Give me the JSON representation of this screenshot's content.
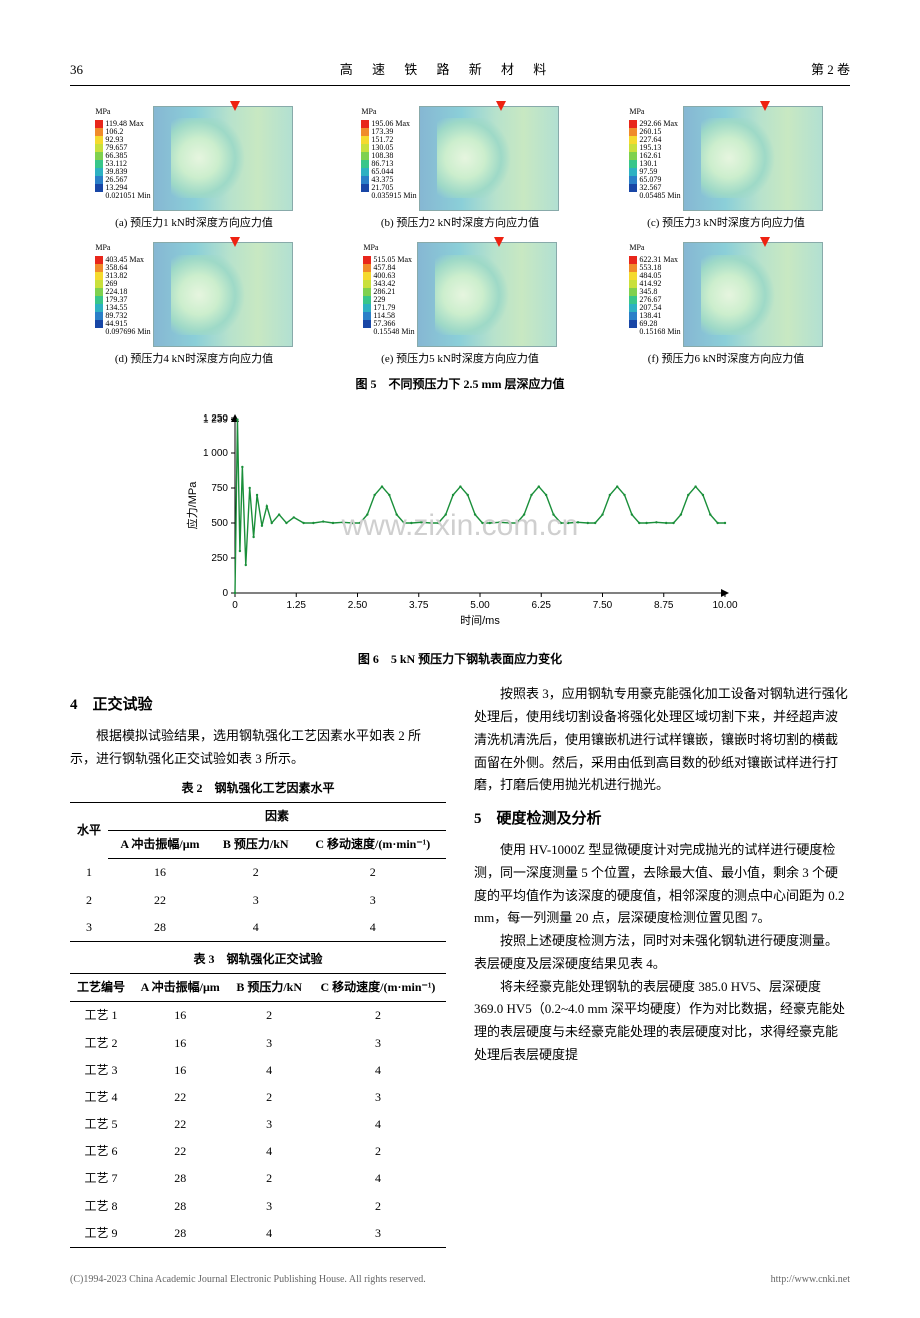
{
  "header": {
    "page_num": "36",
    "journal_title": "高 速 铁 路 新 材 料",
    "volume": "第 2 卷"
  },
  "fig5": {
    "title": "图 5　不同预压力下 2.5 mm 层深应力值",
    "legend_unit": "MPa",
    "legend_colors": [
      "#e8261b",
      "#f08b2a",
      "#f5da2e",
      "#c9e03c",
      "#7fd14e",
      "#38c68a",
      "#2db1c2",
      "#2a7fc8",
      "#1846a6"
    ],
    "panels": [
      {
        "caption": "(a) 预压力1 kN时深度方向应力值",
        "values": [
          "119.48 Max",
          "106.2",
          "92.93",
          "79.657",
          "66.385",
          "53.112",
          "39.839",
          "26.567",
          "13.294",
          "0.021051 Min"
        ]
      },
      {
        "caption": "(b) 预压力2 kN时深度方向应力值",
        "values": [
          "195.06 Max",
          "173.39",
          "151.72",
          "130.05",
          "108.38",
          "86.713",
          "65.044",
          "43.375",
          "21.705",
          "0.035915 Min"
        ]
      },
      {
        "caption": "(c) 预压力3 kN时深度方向应力值",
        "values": [
          "292.66 Max",
          "260.15",
          "227.64",
          "195.13",
          "162.61",
          "130.1",
          "97.59",
          "65.079",
          "32.567",
          "0.05485 Min"
        ]
      },
      {
        "caption": "(d) 预压力4 kN时深度方向应力值",
        "values": [
          "403.45 Max",
          "358.64",
          "313.82",
          "269",
          "224.18",
          "179.37",
          "134.55",
          "89.732",
          "44.915",
          "0.097696 Min"
        ]
      },
      {
        "caption": "(e) 预压力5 kN时深度方向应力值",
        "values": [
          "515.05 Max",
          "457.84",
          "400.63",
          "343.42",
          "286.21",
          "229",
          "171.79",
          "114.58",
          "57.366",
          "0.15548 Min"
        ]
      },
      {
        "caption": "(f) 预压力6 kN时深度方向应力值",
        "values": [
          "622.31 Max",
          "553.18",
          "484.05",
          "414.92",
          "345.8",
          "276.67",
          "207.54",
          "138.41",
          "69.28",
          "0.15168 Min"
        ]
      }
    ]
  },
  "fig6": {
    "title": "图 6　5 kN 预压力下钢轨表面应力变化",
    "x_label": "时间/ms",
    "y_label": "应力/MPa",
    "x_ticks": [
      "0",
      "1.25",
      "2.50",
      "3.75",
      "5.00",
      "6.25",
      "7.50",
      "8.75",
      "10.00"
    ],
    "y_ticks": [
      "0",
      "250",
      "500",
      "750",
      "1 000",
      "1 239",
      "1 250"
    ],
    "xlim": [
      0,
      10
    ],
    "ylim": [
      0,
      1250
    ],
    "line_color": "#1a8f3a",
    "axis_color": "#000000",
    "background": "#ffffff",
    "series": [
      [
        0.0,
        0
      ],
      [
        0.05,
        1239
      ],
      [
        0.1,
        300
      ],
      [
        0.15,
        900
      ],
      [
        0.22,
        200
      ],
      [
        0.3,
        750
      ],
      [
        0.38,
        400
      ],
      [
        0.45,
        700
      ],
      [
        0.55,
        480
      ],
      [
        0.65,
        620
      ],
      [
        0.75,
        500
      ],
      [
        0.9,
        560
      ],
      [
        1.05,
        500
      ],
      [
        1.2,
        540
      ],
      [
        1.4,
        500
      ],
      [
        1.6,
        500
      ],
      [
        1.8,
        510
      ],
      [
        2.0,
        500
      ],
      [
        2.2,
        505
      ],
      [
        2.4,
        500
      ],
      [
        2.55,
        500
      ],
      [
        2.7,
        560
      ],
      [
        2.85,
        700
      ],
      [
        3.0,
        760
      ],
      [
        3.15,
        700
      ],
      [
        3.3,
        560
      ],
      [
        3.45,
        500
      ],
      [
        3.6,
        500
      ],
      [
        3.8,
        505
      ],
      [
        4.0,
        500
      ],
      [
        4.15,
        500
      ],
      [
        4.3,
        560
      ],
      [
        4.45,
        700
      ],
      [
        4.6,
        760
      ],
      [
        4.75,
        700
      ],
      [
        4.9,
        560
      ],
      [
        5.05,
        500
      ],
      [
        5.2,
        500
      ],
      [
        5.4,
        505
      ],
      [
        5.6,
        500
      ],
      [
        5.75,
        500
      ],
      [
        5.9,
        560
      ],
      [
        6.05,
        700
      ],
      [
        6.2,
        760
      ],
      [
        6.35,
        700
      ],
      [
        6.5,
        560
      ],
      [
        6.65,
        500
      ],
      [
        6.8,
        500
      ],
      [
        7.0,
        505
      ],
      [
        7.2,
        500
      ],
      [
        7.35,
        500
      ],
      [
        7.5,
        560
      ],
      [
        7.65,
        700
      ],
      [
        7.8,
        760
      ],
      [
        7.95,
        700
      ],
      [
        8.1,
        560
      ],
      [
        8.25,
        500
      ],
      [
        8.4,
        500
      ],
      [
        8.6,
        505
      ],
      [
        8.8,
        500
      ],
      [
        8.95,
        500
      ],
      [
        9.1,
        560
      ],
      [
        9.25,
        700
      ],
      [
        9.4,
        760
      ],
      [
        9.55,
        700
      ],
      [
        9.7,
        560
      ],
      [
        9.85,
        500
      ],
      [
        10.0,
        500
      ]
    ]
  },
  "sec4": {
    "heading": "4　正交试验",
    "para1": "根据模拟试验结果，选用钢轨强化工艺因素水平如表 2 所示，进行钢轨强化正交试验如表 3 所示。"
  },
  "table2": {
    "title": "表 2　钢轨强化工艺因素水平",
    "head_group": "因素",
    "head_level": "水平",
    "columns": [
      "A 冲击振幅/μm",
      "B 预压力/kN",
      "C 移动速度/(m·min⁻¹)"
    ],
    "rows": [
      [
        "1",
        "16",
        "2",
        "2"
      ],
      [
        "2",
        "22",
        "3",
        "3"
      ],
      [
        "3",
        "28",
        "4",
        "4"
      ]
    ]
  },
  "table3": {
    "title": "表 3　钢轨强化正交试验",
    "columns": [
      "工艺编号",
      "A 冲击振幅/μm",
      "B 预压力/kN",
      "C 移动速度/(m·min⁻¹)"
    ],
    "rows": [
      [
        "工艺 1",
        "16",
        "2",
        "2"
      ],
      [
        "工艺 2",
        "16",
        "3",
        "3"
      ],
      [
        "工艺 3",
        "16",
        "4",
        "4"
      ],
      [
        "工艺 4",
        "22",
        "2",
        "3"
      ],
      [
        "工艺 5",
        "22",
        "3",
        "4"
      ],
      [
        "工艺 6",
        "22",
        "4",
        "2"
      ],
      [
        "工艺 7",
        "28",
        "2",
        "4"
      ],
      [
        "工艺 8",
        "28",
        "3",
        "2"
      ],
      [
        "工艺 9",
        "28",
        "4",
        "3"
      ]
    ]
  },
  "right_col": {
    "para1": "按照表 3，应用钢轨专用豪克能强化加工设备对钢轨进行强化处理后，使用线切割设备将强化处理区域切割下来，并经超声波清洗机清洗后，使用镶嵌机进行试样镶嵌，镶嵌时将切割的横截面留在外侧。然后，采用由低到高目数的砂纸对镶嵌试样进行打磨，打磨后使用抛光机进行抛光。",
    "heading5": "5　硬度检测及分析",
    "para2": "使用 HV-1000Z 型显微硬度计对完成抛光的试样进行硬度检测，同一深度测量 5 个位置，去除最大值、最小值，剩余 3 个硬度的平均值作为该深度的硬度值，相邻深度的测点中心间距为 0.2 mm，每一列测量 20 点，层深硬度检测位置见图 7。",
    "para3": "按照上述硬度检测方法，同时对未强化钢轨进行硬度测量。表层硬度及层深硬度结果见表 4。",
    "para4": "将未经豪克能处理钢轨的表层硬度 385.0 HV5、层深硬度 369.0 HV5（0.2~4.0 mm 深平均硬度）作为对比数据，经豪克能处理的表层硬度与未经豪克能处理的表层硬度对比，求得经豪克能处理后表层硬度提"
  },
  "watermark": "www.zixin.com.cn",
  "footer": {
    "left": "(C)1994-2023 China Academic Journal Electronic Publishing House. All rights reserved.",
    "right": "http://www.cnki.net"
  }
}
